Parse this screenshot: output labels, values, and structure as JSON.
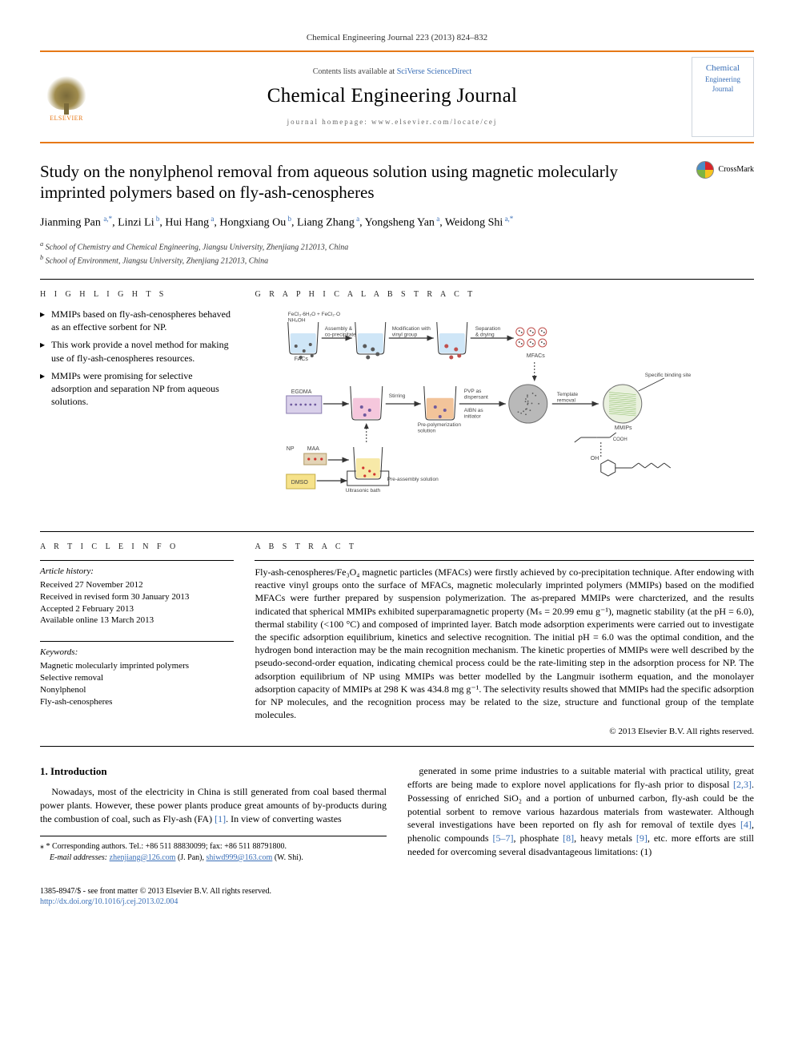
{
  "header": {
    "citation": "Chemical Engineering Journal 223 (2013) 824–832",
    "contents_prefix": "Contents lists available at ",
    "contents_link": "SciVerse ScienceDirect",
    "journal_name": "Chemical Engineering Journal",
    "homepage_prefix": "journal homepage: ",
    "homepage": "www.elsevier.com/locate/cej",
    "publisher": "ELSEVIER",
    "cover_line1": "Chemical",
    "cover_line2": "Engineering",
    "cover_line3": "Journal"
  },
  "crossmark": {
    "label": "CrossMark"
  },
  "title": "Study on the nonylphenol removal from aqueous solution using magnetic molecularly imprinted polymers based on fly-ash-cenospheres",
  "authors_html": "Jianming Pan <sup>a,*</sup>, Linzi Li<sup> b</sup>, Hui Hang<sup> a</sup>, Hongxiang Ou<sup> b</sup>, Liang Zhang<sup> a</sup>, Yongsheng Yan<sup> a</sup>, Weidong Shi<sup> a,*</sup>",
  "affiliations": [
    "a School of Chemistry and Chemical Engineering, Jiangsu University, Zhenjiang 212013, China",
    "b School of Environment, Jiangsu University, Zhenjiang 212013, China"
  ],
  "highlights_label": "H I G H L I G H T S",
  "graphical_label": "G R A P H I C A L  A B S T R A C T",
  "highlights": [
    "MMIPs based on fly-ash-cenospheres behaved as an effective sorbent for NP.",
    "This work provide a novel method for making use of fly-ash-cenospheres resources.",
    "MMIPs were promising for selective adsorption and separation NP from aqueous solutions."
  ],
  "graphical": {
    "colors": {
      "beaker_outline": "#333333",
      "liquid_blue": "#cfe6f7",
      "liquid_pink": "#f5c7dc",
      "liquid_yellow": "#f7e9a8",
      "liquid_orange": "#f2c49a",
      "particle_dark": "#5a5a5a",
      "particle_red": "#c0504d",
      "particle_purple": "#6f5a9e",
      "arrow": "#333333",
      "label": "#444444",
      "egdma_bg": "#d9d0ea",
      "sphere_grey": "#b9b9b9",
      "sphere_outline": "#6e6e6e",
      "dmso_box": "#f6e28a",
      "maa_bg": "#e3d4b6",
      "red_dot": "#d0332e",
      "binding_site_green": "#8fbf6a"
    },
    "labels": {
      "top_reagents": "FeCl₃·6H₂O + FeCl₂·O\nNH₄OH",
      "assembly": "Assembly &\nco-precipitate",
      "modify": "Modification with\nvinyl group",
      "separate": "Separation\n& drying",
      "facs": "FACs",
      "mfacs": "MFACs",
      "egdma": "EGDMA",
      "stirring": "Stirring",
      "prepoly": "Pre-polymerization\nsolution",
      "pvp": "PVP as\ndispersant",
      "aibn": "AIBN as\ninitiator",
      "template": "Template\nremoval",
      "specific": "Specific binding site",
      "mmips": "MMIPs",
      "np": "NP",
      "maa": "MAA",
      "ultra": "Ultrasonic bath",
      "preassembly": "Pre-assembly solution",
      "dmso": "DMSO",
      "mol_oh": "OH",
      "mol_cooh": "COOH"
    }
  },
  "article_info_label": "A R T I C L E  I N F O",
  "abstract_label": "A B S T R A C T",
  "article_info": {
    "history_label": "Article history:",
    "history": [
      "Received 27 November 2012",
      "Received in revised form 30 January 2013",
      "Accepted 2 February 2013",
      "Available online 13 March 2013"
    ],
    "keywords_label": "Keywords:",
    "keywords": [
      "Magnetic molecularly imprinted polymers",
      "Selective removal",
      "Nonylphenol",
      "Fly-ash-cenospheres"
    ]
  },
  "abstract": "Fly-ash-cenospheres/Fe₃O₄ magnetic particles (MFACs) were firstly achieved by co-precipitation technique. After endowing with reactive vinyl groups onto the surface of MFACs, magnetic molecularly imprinted polymers (MMIPs) based on the modified MFACs were further prepared by suspension polymerization. The as-prepared MMIPs were charcterized, and the results indicated that spherical MMIPs exhibited superparamagnetic property (Mₛ = 20.99 emu g⁻¹), magnetic stability (at the pH = 6.0), thermal stability (<100 °C) and composed of imprinted layer. Batch mode adsorption experiments were carried out to investigate the specific adsorption equilibrium, kinetics and selective recognition. The initial pH = 6.0 was the optimal condition, and the hydrogen bond interaction may be the main recognition mechanism. The kinetic properties of MMIPs were well described by the pseudo-second-order equation, indicating chemical process could be the rate-limiting step in the adsorption process for NP. The adsorption equilibrium of NP using MMIPs was better modelled by the Langmuir isotherm equation, and the monolayer adsorption capacity of MMIPs at 298 K was 434.8 mg g⁻¹. The selectivity results showed that MMIPs had the specific adsorption for NP molecules, and the recognition process may be related to the size, structure and functional group of the template molecules.",
  "abstract_copyright": "© 2013 Elsevier B.V. All rights reserved.",
  "body": {
    "intro_heading": "1. Introduction",
    "col1_para": "Nowadays, most of the electricity in China is still generated from coal based thermal power plants. However, these power plants produce great amounts of by-products during the combustion of coal, such as Fly-ash (FA) [1]. In view of converting wastes",
    "col2_para": "generated in some prime industries to a suitable material with practical utility, great efforts are being made to explore novel applications for fly-ash prior to disposal [2,3]. Possessing of enriched SiO₂ and a portion of unburned carbon, fly-ash could be the potential sorbent to remove various hazardous materials from wastewater. Although several investigations have been reported on fly ash for removal of textile dyes [4], phenolic compounds [5–7], phosphate [8], heavy metals [9], etc. more efforts are still needed for overcoming several disadvantageous limitations: (1)"
  },
  "footnote": {
    "corr": "* Corresponding authors. Tel.: +86 511 88830099; fax: +86 511 88791800.",
    "emails_label": "E-mail addresses: ",
    "email1": "zhenjiang@126.com",
    "email1_who": " (J. Pan), ",
    "email2": "shiwd999@163.com",
    "email2_who": " (W. Shi)."
  },
  "footer": {
    "line1": "1385-8947/$ - see front matter © 2013 Elsevier B.V. All rights reserved.",
    "line2_prefix": "http://dx.doi.org/",
    "doi": "10.1016/j.cej.2013.02.004"
  }
}
